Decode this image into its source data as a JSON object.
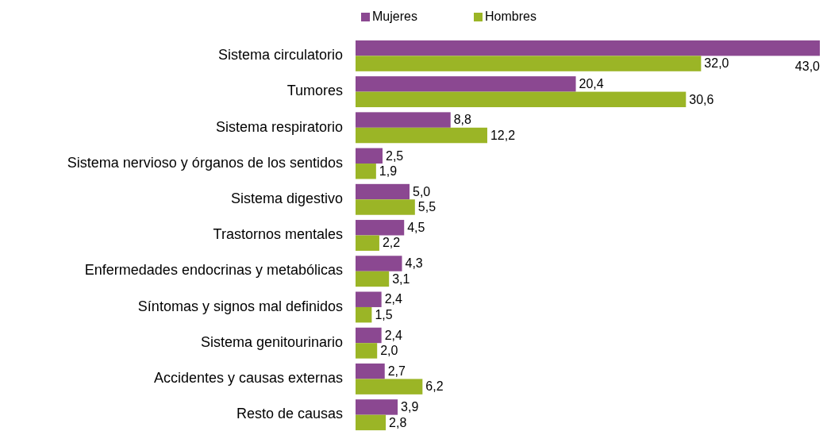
{
  "chart_data": {
    "type": "bar",
    "orientation": "horizontal",
    "legend": "top",
    "categories": [
      "Sistema circulatorio",
      "Tumores",
      "Sistema respiratorio",
      "Sistema nervioso y órganos de los sentidos",
      "Sistema digestivo",
      "Trastornos mentales",
      "Enfermedades endocrinas y metabólicas",
      "Síntomas y signos mal definidos",
      "Sistema genitourinario",
      "Accidentes y causas externas",
      "Resto de causas"
    ],
    "series": [
      {
        "name": "Mujeres",
        "color": "#8b4891",
        "values": [
          43.0,
          20.4,
          8.8,
          2.5,
          5.0,
          4.5,
          4.3,
          2.4,
          2.4,
          2.7,
          3.9
        ],
        "value_labels": [
          "43,0",
          "20,4",
          "8,8",
          "2,5",
          "5,0",
          "4,5",
          "4,3",
          "2,4",
          "2,4",
          "2,7",
          "3,9"
        ]
      },
      {
        "name": "Hombres",
        "color": "#9bb526",
        "values": [
          32.0,
          30.6,
          12.2,
          1.9,
          5.5,
          2.2,
          3.1,
          1.5,
          2.0,
          6.2,
          2.8
        ],
        "value_labels": [
          "32,0",
          "30,6",
          "12,2",
          "1,9",
          "5,5",
          "2,2",
          "3,1",
          "1,5",
          "2,0",
          "6,2",
          "2,8"
        ]
      }
    ]
  }
}
